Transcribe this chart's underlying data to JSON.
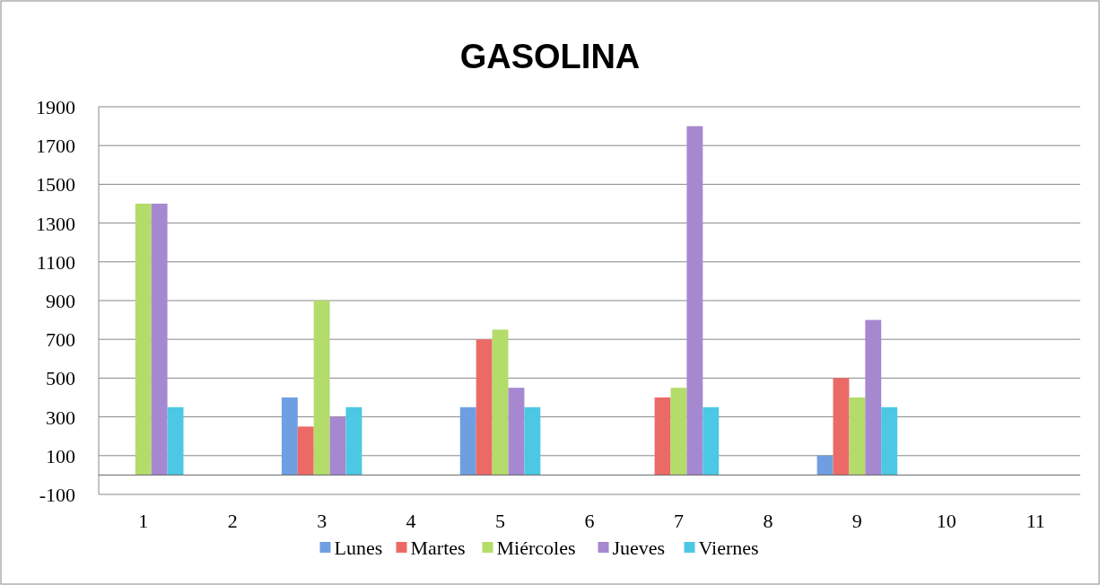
{
  "chart_data": {
    "type": "bar",
    "title": "GASOLINA",
    "categories": [
      "1",
      "2",
      "3",
      "4",
      "5",
      "6",
      "7",
      "8",
      "9",
      "10",
      "11"
    ],
    "series": [
      {
        "name": "Lunes",
        "color": "#6f9fe0",
        "values": [
          0,
          null,
          400,
          null,
          350,
          null,
          0,
          null,
          100,
          null,
          null
        ]
      },
      {
        "name": "Martes",
        "color": "#ec6a66",
        "values": [
          0,
          null,
          250,
          null,
          700,
          null,
          400,
          null,
          500,
          null,
          null
        ]
      },
      {
        "name": "Miércoles",
        "color": "#b4dc6a",
        "values": [
          1400,
          null,
          900,
          null,
          750,
          null,
          450,
          null,
          400,
          null,
          null
        ]
      },
      {
        "name": "Jueves",
        "color": "#a688d0",
        "values": [
          1400,
          null,
          300,
          null,
          450,
          null,
          1800,
          null,
          800,
          null,
          null
        ]
      },
      {
        "name": "Viernes",
        "color": "#4cc8e4",
        "values": [
          350,
          null,
          350,
          null,
          350,
          null,
          350,
          null,
          350,
          null,
          null
        ]
      }
    ],
    "ylim": [
      -100,
      1900
    ],
    "yticks": [
      -100,
      100,
      300,
      500,
      700,
      900,
      1100,
      1300,
      1500,
      1700,
      1900
    ],
    "grid": "y",
    "legend": "bottom"
  }
}
